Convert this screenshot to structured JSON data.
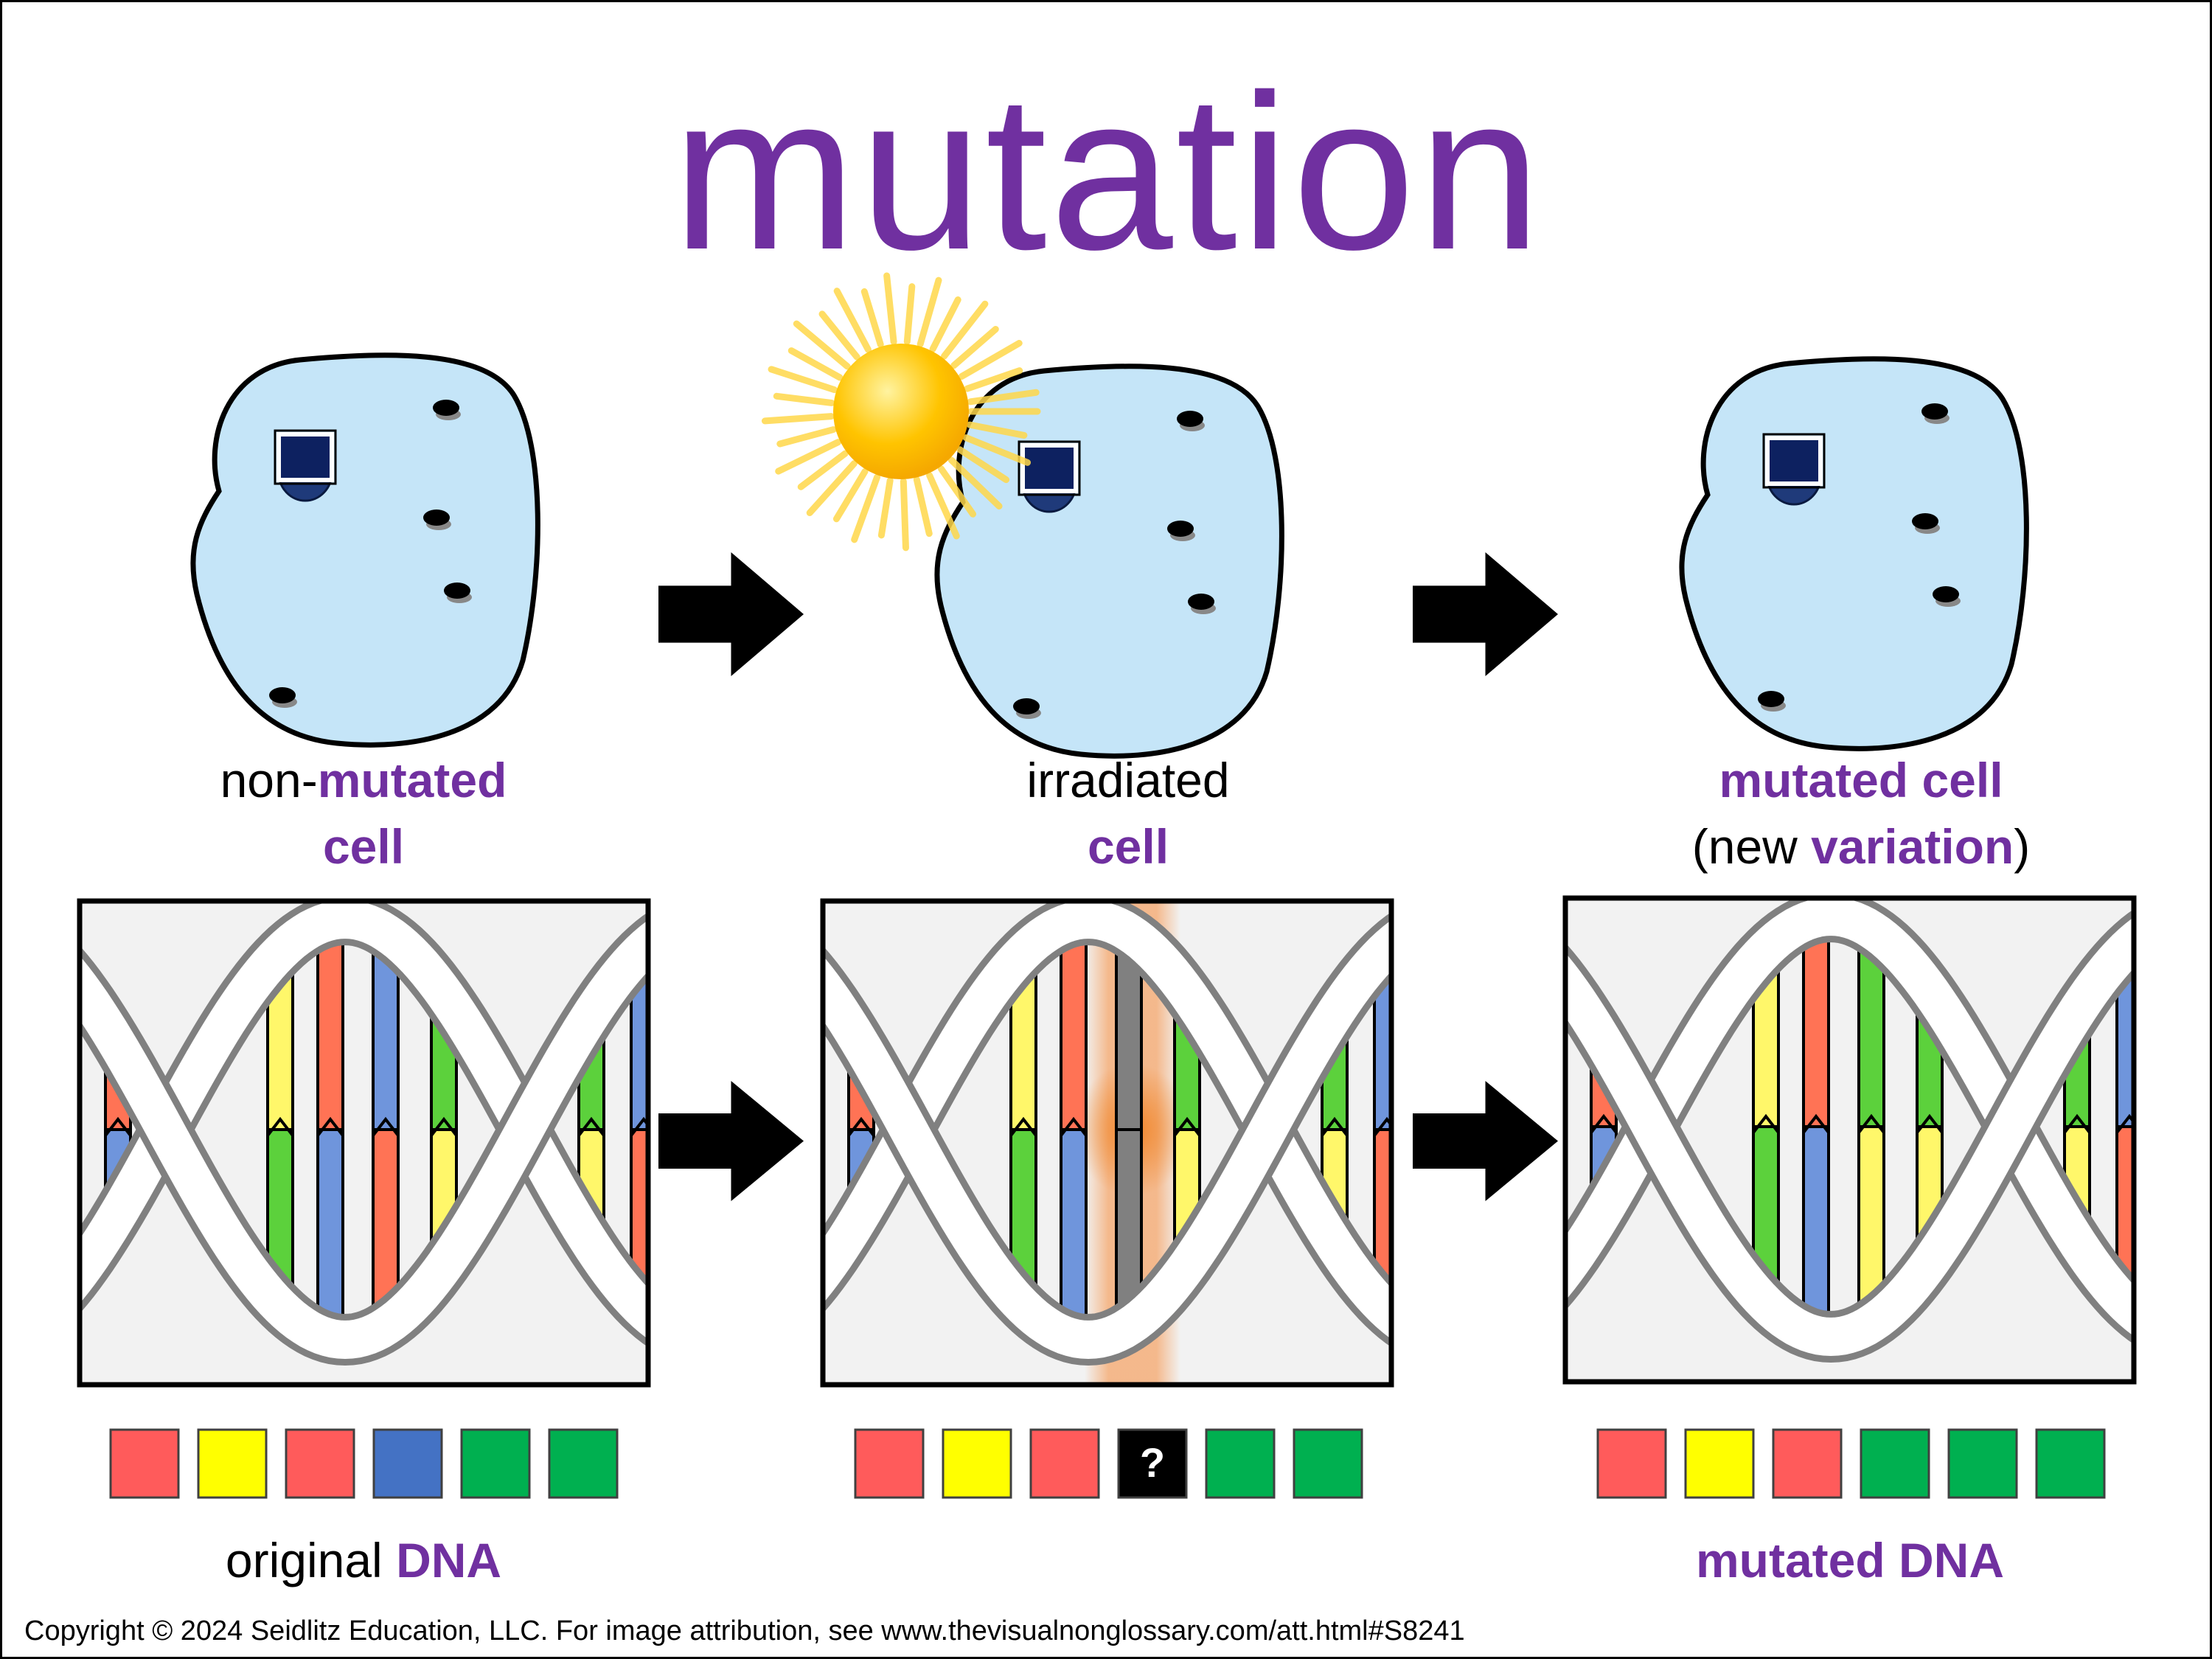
{
  "title": "mutation",
  "colors": {
    "accent": "#7030A0",
    "cell_fill": "#C5E5F8",
    "red": "#FF5B5B",
    "yellow": "#FFFF00",
    "blue": "#4472C4",
    "green": "#00B050",
    "unknown": "#000000"
  },
  "cells": [
    {
      "label_part1": "non-",
      "label_part2": "mutated",
      "label_line2": "cell"
    },
    {
      "label_line1": "irradiated",
      "label_line2": "cell",
      "icon": "sun-icon"
    },
    {
      "label_line1": "mutated cell",
      "line2_open": "(new ",
      "line2_accent": "variation",
      "line2_close": ")"
    }
  ],
  "dna_panels": [
    {
      "rungs": [
        [
          "red",
          "blue"
        ],
        [
          "yellow",
          "green"
        ],
        [
          "red",
          "blue"
        ],
        [
          "blue",
          "red"
        ],
        [
          "green",
          "yellow"
        ],
        [
          "green",
          "yellow"
        ],
        [
          "blue",
          "red"
        ]
      ]
    },
    {
      "rungs": [
        [
          "red",
          "blue"
        ],
        [
          "yellow",
          "green"
        ],
        [
          "red",
          "blue"
        ],
        [
          "gray",
          "gray"
        ],
        [
          "green",
          "yellow"
        ],
        [
          "green",
          "yellow"
        ],
        [
          "blue",
          "red"
        ]
      ],
      "highlight": true
    },
    {
      "rungs": [
        [
          "red",
          "blue"
        ],
        [
          "yellow",
          "green"
        ],
        [
          "red",
          "blue"
        ],
        [
          "green",
          "yellow"
        ],
        [
          "green",
          "yellow"
        ],
        [
          "green",
          "yellow"
        ],
        [
          "blue",
          "red"
        ]
      ]
    }
  ],
  "sequences": [
    {
      "bases": [
        "red",
        "yellow",
        "red",
        "blue",
        "green",
        "green"
      ],
      "label_plain": "original ",
      "label_accent": "DNA"
    },
    {
      "bases": [
        "red",
        "yellow",
        "red",
        "unknown",
        "green",
        "green"
      ],
      "unknown_symbol": "?"
    },
    {
      "bases": [
        "red",
        "yellow",
        "red",
        "green",
        "green",
        "green"
      ],
      "label_accent": "mutated DNA"
    }
  ],
  "copyright": "Copyright © 2024 Seidlitz Education, LLC.  For image attribution, see www.thevisualnonglossary.com/att.html#S8241"
}
